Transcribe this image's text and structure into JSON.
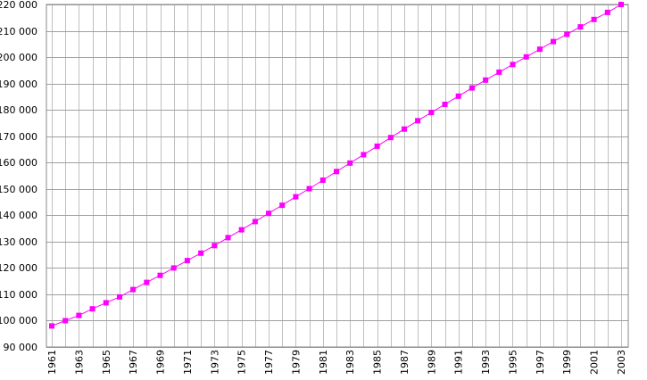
{
  "chart_data": {
    "type": "line",
    "title": "",
    "xlabel": "",
    "ylabel": "",
    "grid": true,
    "xlim": [
      1961,
      2003
    ],
    "ylim": [
      90000,
      220000
    ],
    "y_ticks": [
      {
        "value": 90000,
        "label": "90 000"
      },
      {
        "value": 100000,
        "label": "100 000"
      },
      {
        "value": 110000,
        "label": "110 000"
      },
      {
        "value": 120000,
        "label": "120 000"
      },
      {
        "value": 130000,
        "label": "130 000"
      },
      {
        "value": 140000,
        "label": "140 000"
      },
      {
        "value": 150000,
        "label": "150 000"
      },
      {
        "value": 160000,
        "label": "160 000"
      },
      {
        "value": 170000,
        "label": "170 000"
      },
      {
        "value": 180000,
        "label": "180 000"
      },
      {
        "value": 190000,
        "label": "190 000"
      },
      {
        "value": 200000,
        "label": "200 000"
      },
      {
        "value": 210000,
        "label": "210 000"
      },
      {
        "value": 220000,
        "label": "220 000"
      }
    ],
    "x_tick_labels": [
      "1961",
      "1963",
      "1965",
      "1967",
      "1969",
      "1971",
      "1973",
      "1975",
      "1977",
      "1979",
      "1981",
      "1983",
      "1985",
      "1987",
      "1989",
      "1991",
      "1993",
      "1995",
      "1997",
      "1999",
      "2001",
      "2003"
    ],
    "x": [
      1961,
      1962,
      1963,
      1964,
      1965,
      1966,
      1967,
      1968,
      1969,
      1970,
      1971,
      1972,
      1973,
      1974,
      1975,
      1976,
      1977,
      1978,
      1979,
      1980,
      1981,
      1982,
      1983,
      1984,
      1985,
      1986,
      1987,
      1988,
      1989,
      1990,
      1991,
      1992,
      1993,
      1994,
      1995,
      1996,
      1997,
      1998,
      1999,
      2000,
      2001,
      2002,
      2003
    ],
    "series": [
      {
        "color": "#ff00ff",
        "values": [
          98000,
          100000,
          102000,
          104500,
          106800,
          109000,
          111800,
          114500,
          117200,
          120000,
          122800,
          125600,
          128500,
          131500,
          134500,
          137600,
          140700,
          143800,
          147000,
          150100,
          153300,
          156600,
          159800,
          163000,
          166200,
          169500,
          172700,
          175900,
          179000,
          182100,
          185200,
          188300,
          191300,
          194300,
          197200,
          200100,
          203000,
          205900,
          208700,
          211500,
          214300,
          217000,
          220000
        ]
      }
    ]
  }
}
